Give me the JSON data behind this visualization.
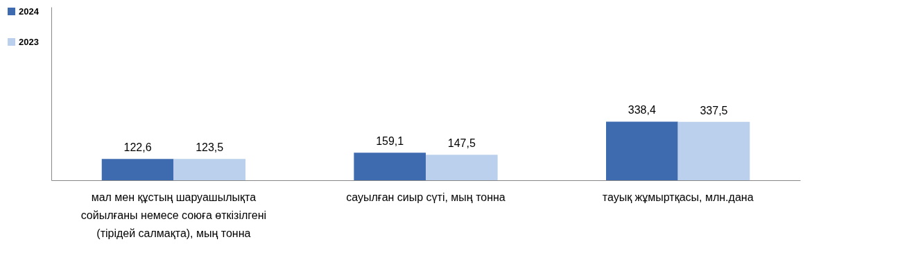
{
  "chart_data": {
    "type": "bar",
    "categories": [
      "мал мен құстың шаруашылықта сойылғаны немесе союға өткізілгені (тірідей салмақта), мың тонна",
      "сауылған сиыр сүті, мың тонна",
      "тауық жұмыртқасы, млн.дана"
    ],
    "series": [
      {
        "name": "2024",
        "color": "#3e6baf",
        "values": [
          122.6,
          159.1,
          338.4
        ],
        "value_labels": [
          "122,6",
          "159,1",
          "338,4"
        ]
      },
      {
        "name": "2023",
        "color": "#bad0ec",
        "values": [
          123.5,
          147.5,
          337.5
        ],
        "value_labels": [
          "123,5",
          "147,5",
          "337,5"
        ]
      }
    ],
    "ylim": [
      0,
      1000
    ],
    "tick_labels": "x",
    "grid": false,
    "legend": "left"
  }
}
